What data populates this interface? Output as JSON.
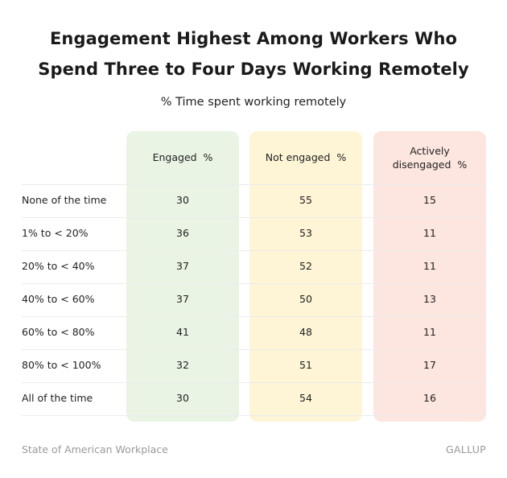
{
  "title_line1": "Engagement Highest Among Workers Who",
  "title_line2": "Spend Three to Four Days Working Remotely",
  "subtitle": "% Time spent working remotely",
  "colors": {
    "engaged_bg": "#e9f4e4",
    "not_engaged_bg": "#fdf5d6",
    "disengaged_bg": "#fde6df",
    "gridline": "#ececec",
    "footer_text": "#9a9a9a"
  },
  "chart_data": {
    "type": "table",
    "columns": [
      {
        "label_lines": [
          "Engaged  %"
        ],
        "color": "#e9f4e4"
      },
      {
        "label_lines": [
          "Not engaged  %"
        ],
        "color": "#fdf5d6"
      },
      {
        "label_lines": [
          "Actively",
          "disengaged  %"
        ],
        "color": "#fde6df"
      }
    ],
    "rows": [
      {
        "label": "None of the time",
        "values": [
          30,
          55,
          15
        ]
      },
      {
        "label": "1% to < 20%",
        "values": [
          36,
          53,
          11
        ]
      },
      {
        "label": "20% to < 40%",
        "values": [
          37,
          52,
          11
        ]
      },
      {
        "label": "40% to < 60%",
        "values": [
          37,
          50,
          13
        ]
      },
      {
        "label": "60% to < 80%",
        "values": [
          41,
          48,
          11
        ]
      },
      {
        "label": "80% to < 100%",
        "values": [
          32,
          51,
          17
        ]
      },
      {
        "label": "All of the time",
        "values": [
          30,
          54,
          16
        ]
      }
    ]
  },
  "footer": {
    "source": "State of American Workplace",
    "brand": "GALLUP"
  }
}
